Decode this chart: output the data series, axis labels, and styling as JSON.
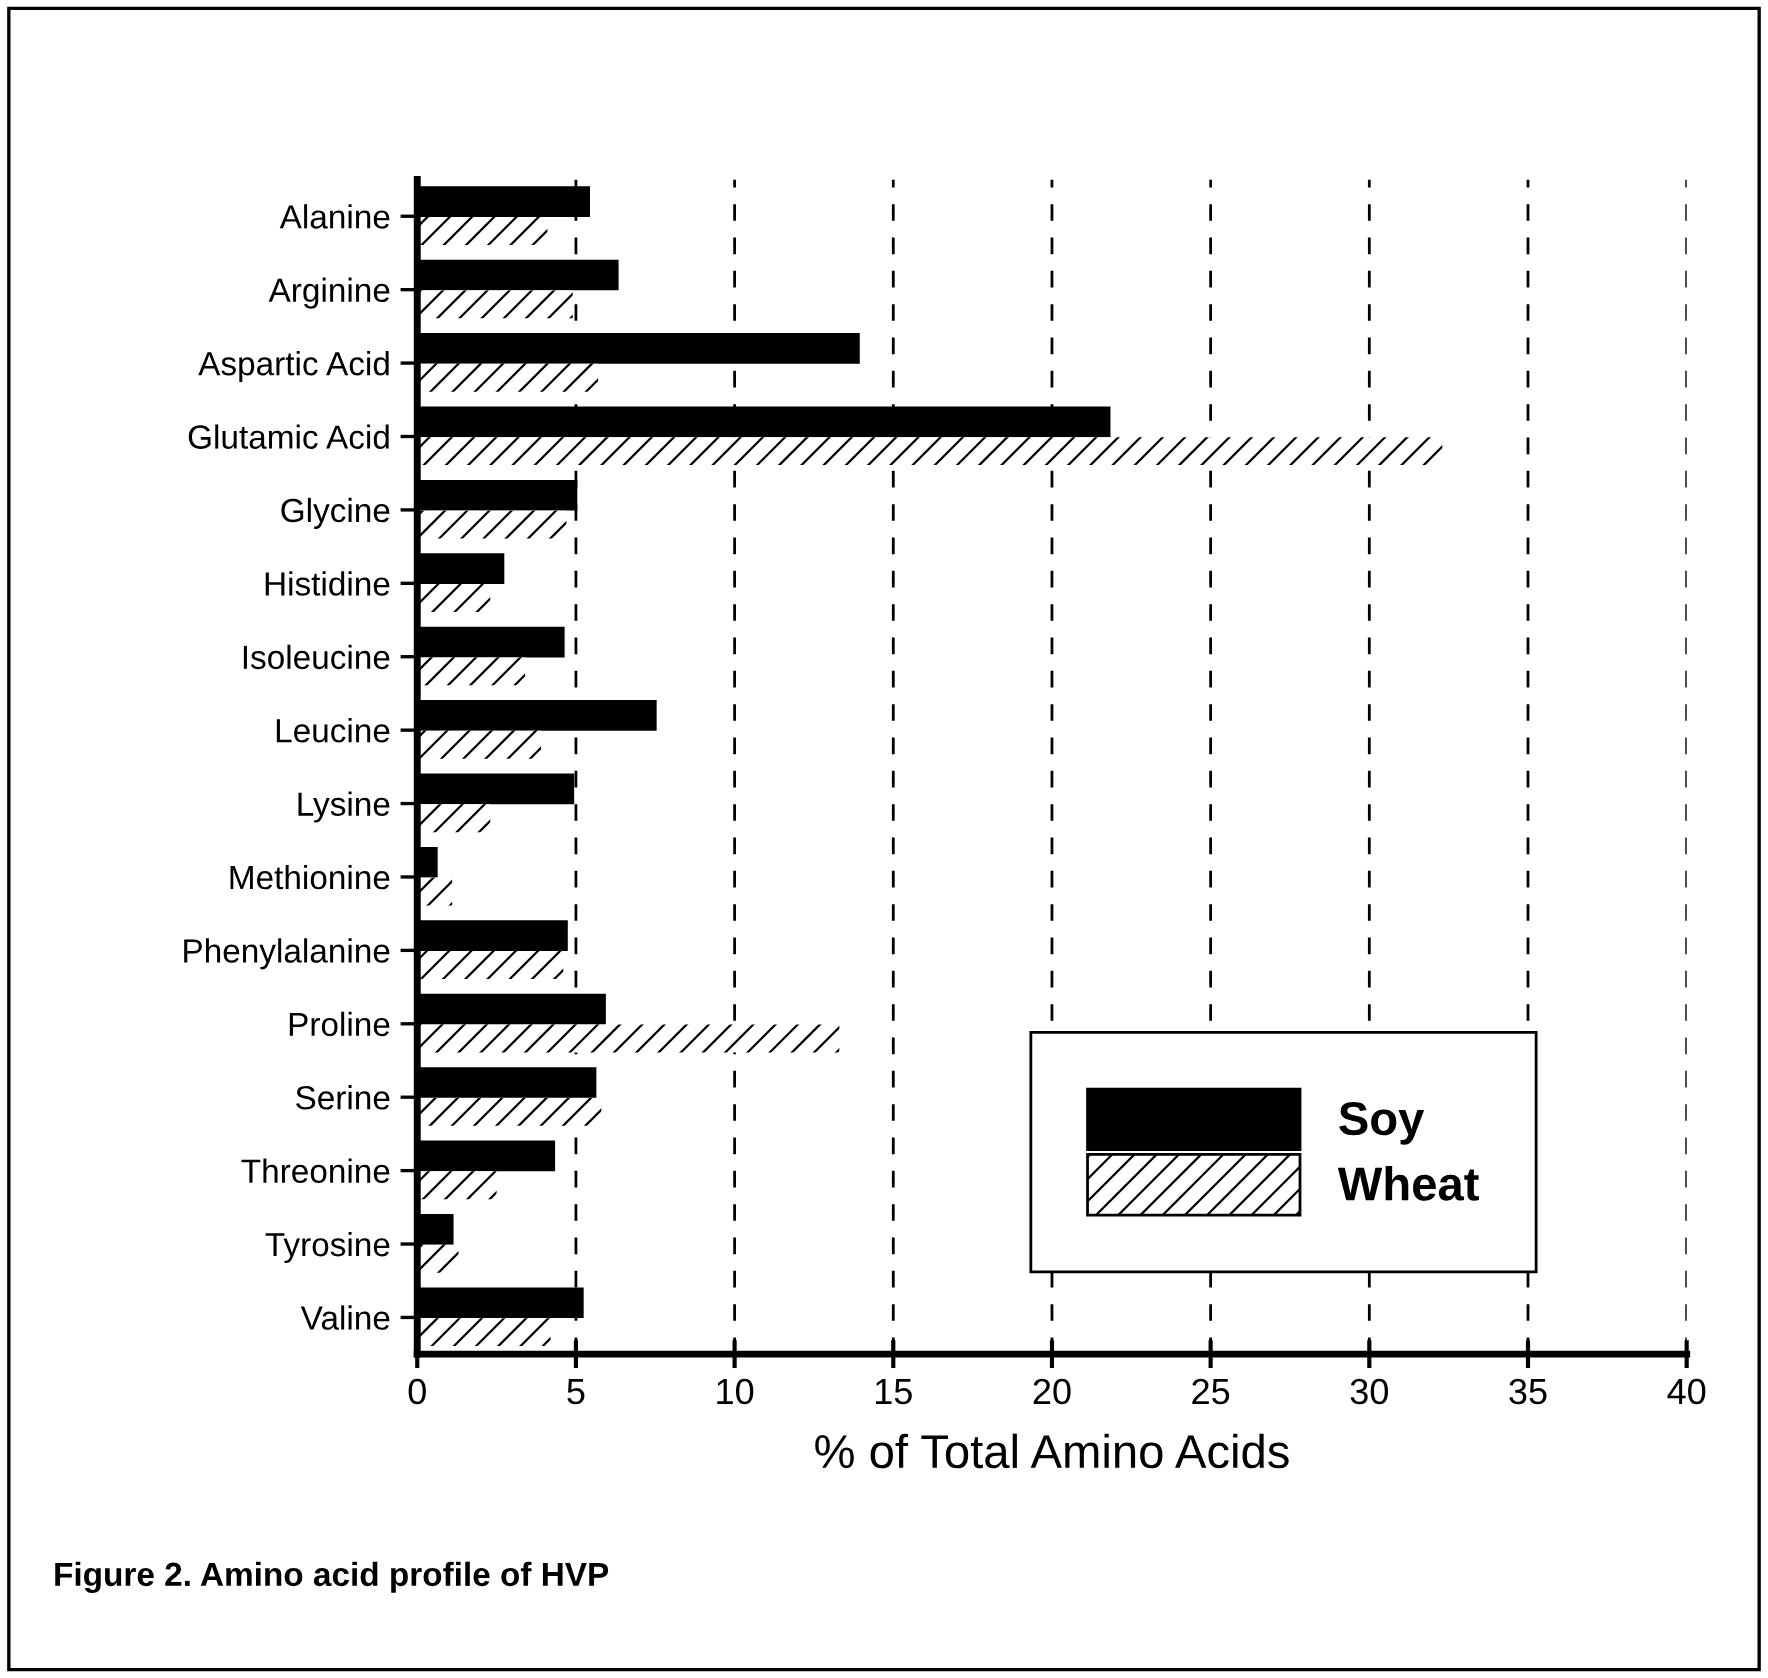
{
  "chart_data": {
    "type": "bar",
    "orientation": "horizontal",
    "xlabel": "% of Total Amino Acids",
    "categories": [
      "Alanine",
      "Arginine",
      "Aspartic Acid",
      "Glutamic Acid",
      "Glycine",
      "Histidine",
      "Isoleucine",
      "Leucine",
      "Lysine",
      "Methionine",
      "Phenylalanine",
      "Proline",
      "Serine",
      "Threonine",
      "Tyrosine",
      "Valine"
    ],
    "series": [
      {
        "name": "Soy",
        "color": "#000000",
        "values": [
          5.4,
          6.3,
          13.9,
          21.8,
          5.0,
          2.7,
          4.6,
          7.5,
          4.9,
          0.6,
          4.7,
          5.9,
          5.6,
          4.3,
          1.1,
          5.2
        ]
      },
      {
        "name": "Wheat",
        "color": "#ffffff",
        "values": [
          4.1,
          4.9,
          5.7,
          32.3,
          4.7,
          2.3,
          3.4,
          3.9,
          2.3,
          1.1,
          4.6,
          13.3,
          5.8,
          2.5,
          1.3,
          4.2
        ]
      }
    ],
    "xlim": [
      0,
      40
    ],
    "xticks": [
      0,
      5,
      10,
      15,
      20,
      25,
      30,
      35,
      40
    ],
    "grid": "x",
    "line_style": "dashed",
    "legend": "bottom right",
    "annotations": [
      "Figure 2. Amino acid profile of HVP"
    ]
  }
}
